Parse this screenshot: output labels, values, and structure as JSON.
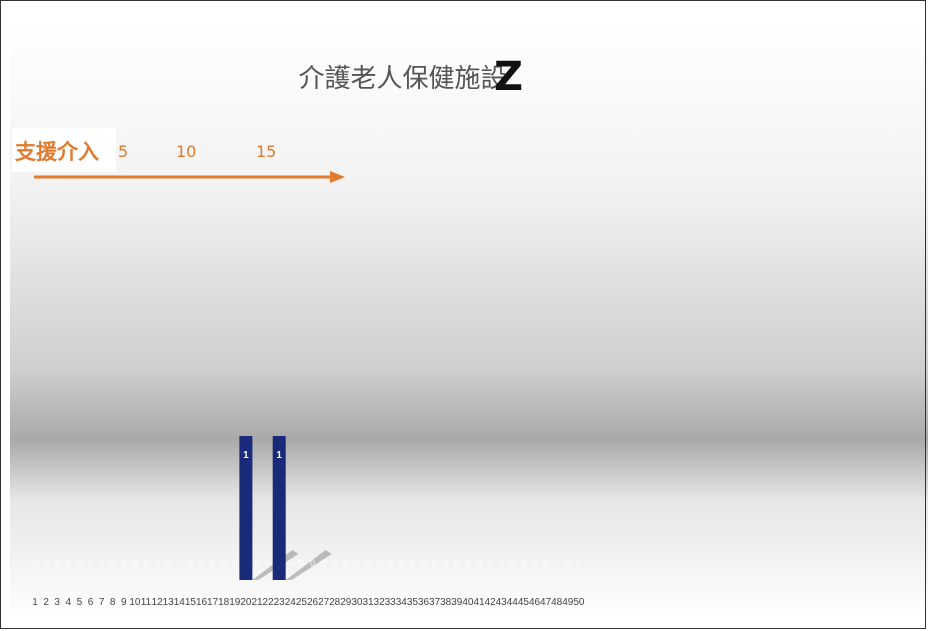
{
  "title": "介護老人保健施設",
  "title_suffix": "Z",
  "annotation": {
    "label": "支援介入",
    "ticks": [
      "5",
      "10",
      "15"
    ],
    "color": "#e07a2e"
  },
  "chart_data": {
    "type": "bar",
    "categories": [
      "1",
      "2",
      "3",
      "4",
      "5",
      "6",
      "7",
      "8",
      "9",
      "10",
      "11",
      "12",
      "13",
      "14",
      "15",
      "16",
      "17",
      "18",
      "19",
      "20",
      "21",
      "22",
      "23",
      "24",
      "25",
      "26",
      "27",
      "28",
      "29",
      "30",
      "31",
      "32",
      "33",
      "34",
      "35",
      "36",
      "37",
      "38",
      "39",
      "40",
      "41",
      "42",
      "43",
      "44",
      "45",
      "46",
      "47",
      "48",
      "49",
      "50"
    ],
    "values": [
      0,
      0,
      0,
      0,
      0,
      0,
      0,
      0,
      0,
      0,
      0,
      0,
      0,
      0,
      0,
      0,
      0,
      0,
      0,
      1,
      0,
      0,
      1,
      0,
      0,
      0,
      0,
      0,
      0,
      0,
      0,
      0,
      0,
      0,
      0,
      0,
      0,
      0,
      0,
      0,
      0,
      0,
      0,
      0,
      0,
      0,
      0,
      0,
      0,
      0
    ],
    "ylim": [
      0,
      1
    ],
    "bar_color": "#1a2a7a",
    "grid": false
  }
}
